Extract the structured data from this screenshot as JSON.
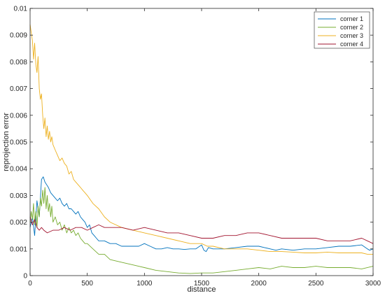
{
  "chart_data": {
    "type": "line",
    "title": "",
    "xlabel": "distance",
    "ylabel": "reprojection error",
    "xlim": [
      0,
      3000
    ],
    "ylim": [
      0,
      0.01
    ],
    "xticks": [
      0,
      500,
      1000,
      1500,
      2000,
      2500,
      3000
    ],
    "xtick_labels": [
      "0",
      "500",
      "1000",
      "1500",
      "2000",
      "2500",
      "3000"
    ],
    "yticks": [
      0,
      0.001,
      0.002,
      0.003,
      0.004,
      0.005,
      0.006,
      0.007,
      0.008,
      0.009,
      0.01
    ],
    "ytick_labels": [
      "0",
      "0.001",
      "0.002",
      "0.003",
      "0.004",
      "0.005",
      "0.006",
      "0.007",
      "0.008",
      "0.009",
      "0.01"
    ],
    "grid": false,
    "legend_position": "top-right",
    "series": [
      {
        "name": "corner 1",
        "color": "#0072BD",
        "x": [
          0,
          20,
          40,
          60,
          80,
          100,
          115,
          130,
          145,
          160,
          180,
          200,
          220,
          240,
          260,
          280,
          300,
          320,
          340,
          360,
          380,
          400,
          420,
          440,
          460,
          480,
          500,
          520,
          540,
          560,
          580,
          600,
          650,
          700,
          750,
          800,
          850,
          900,
          950,
          1000,
          1050,
          1100,
          1150,
          1200,
          1250,
          1300,
          1350,
          1400,
          1450,
          1500,
          1520,
          1540,
          1560,
          1600,
          1700,
          1800,
          1900,
          2000,
          2050,
          2100,
          2150,
          2200,
          2300,
          2400,
          2500,
          2600,
          2700,
          2800,
          2900,
          2950,
          2970,
          3000
        ],
        "y": [
          0.0018,
          0.0022,
          0.0015,
          0.0028,
          0.0022,
          0.0036,
          0.0037,
          0.0035,
          0.0034,
          0.0033,
          0.0031,
          0.003,
          0.0029,
          0.0028,
          0.0029,
          0.0027,
          0.0026,
          0.0027,
          0.0025,
          0.0025,
          0.0024,
          0.0023,
          0.0024,
          0.0022,
          0.0021,
          0.002,
          0.0018,
          0.0019,
          0.0016,
          0.0015,
          0.0014,
          0.0013,
          0.0013,
          0.0012,
          0.0012,
          0.0011,
          0.0011,
          0.0011,
          0.0011,
          0.0012,
          0.0011,
          0.001,
          0.001,
          0.00105,
          0.001,
          0.001,
          0.00098,
          0.001,
          0.001,
          0.00115,
          0.00095,
          0.0009,
          0.00105,
          0.001,
          0.001,
          0.00105,
          0.0011,
          0.0011,
          0.00105,
          0.001,
          0.00095,
          0.001,
          0.00095,
          0.001,
          0.001,
          0.00105,
          0.0011,
          0.0011,
          0.00115,
          0.001,
          0.00095,
          0.001
        ]
      },
      {
        "name": "corner 2",
        "color": "#77AC30",
        "x": [
          0,
          10,
          20,
          30,
          40,
          50,
          60,
          70,
          80,
          90,
          100,
          110,
          120,
          130,
          140,
          150,
          160,
          170,
          180,
          190,
          200,
          220,
          240,
          260,
          280,
          300,
          320,
          340,
          360,
          380,
          400,
          420,
          440,
          460,
          480,
          500,
          550,
          600,
          650,
          700,
          800,
          900,
          1000,
          1100,
          1200,
          1300,
          1400,
          1500,
          1550,
          1600,
          1700,
          1800,
          1900,
          2000,
          2100,
          2200,
          2300,
          2400,
          2500,
          2600,
          2700,
          2800,
          2900,
          3000
        ],
        "y": [
          0.002,
          0.0024,
          0.0021,
          0.0027,
          0.0019,
          0.0024,
          0.0018,
          0.0026,
          0.0022,
          0.0029,
          0.0026,
          0.0032,
          0.0027,
          0.0033,
          0.0025,
          0.003,
          0.0024,
          0.0027,
          0.0022,
          0.0026,
          0.002,
          0.0022,
          0.0019,
          0.002,
          0.0017,
          0.0019,
          0.0016,
          0.0018,
          0.0016,
          0.0017,
          0.0015,
          0.0016,
          0.0014,
          0.0013,
          0.0012,
          0.0012,
          0.001,
          0.0008,
          0.0008,
          0.0006,
          0.0005,
          0.0004,
          0.0003,
          0.0002,
          0.00015,
          0.0001,
          8e-05,
          0.0001,
          0.0001,
          0.0001,
          0.00015,
          0.0002,
          0.00025,
          0.0003,
          0.00025,
          0.00035,
          0.0003,
          0.0003,
          0.00035,
          0.0003,
          0.0003,
          0.0003,
          0.00025,
          0.00035
        ]
      },
      {
        "name": "corner 3",
        "color": "#EDB120",
        "x": [
          0,
          10,
          20,
          30,
          40,
          50,
          60,
          70,
          80,
          90,
          100,
          110,
          120,
          130,
          140,
          150,
          160,
          170,
          180,
          190,
          200,
          220,
          240,
          260,
          280,
          300,
          320,
          340,
          360,
          380,
          400,
          420,
          440,
          460,
          480,
          500,
          550,
          600,
          650,
          700,
          800,
          900,
          1000,
          1100,
          1200,
          1300,
          1400,
          1500,
          1550,
          1600,
          1700,
          1800,
          1900,
          2000,
          2100,
          2200,
          2300,
          2400,
          2500,
          2600,
          2700,
          2800,
          2900,
          2950,
          3000
        ],
        "y": [
          0.0094,
          0.0091,
          0.0088,
          0.0081,
          0.0087,
          0.0079,
          0.0076,
          0.0082,
          0.007,
          0.0066,
          0.0068,
          0.006,
          0.0055,
          0.0059,
          0.0052,
          0.0056,
          0.0051,
          0.0054,
          0.005,
          0.0052,
          0.0049,
          0.0047,
          0.0045,
          0.0043,
          0.0044,
          0.0042,
          0.0041,
          0.0038,
          0.0039,
          0.0036,
          0.0035,
          0.0034,
          0.0033,
          0.0032,
          0.0031,
          0.003,
          0.0027,
          0.0025,
          0.0022,
          0.002,
          0.0018,
          0.0017,
          0.0016,
          0.0015,
          0.0014,
          0.0013,
          0.0012,
          0.0012,
          0.0011,
          0.0011,
          0.001,
          0.001,
          0.001,
          0.00095,
          0.0009,
          0.0009,
          0.00088,
          0.00085,
          0.00085,
          0.00088,
          0.00085,
          0.00085,
          0.00085,
          0.0008,
          0.0008
        ]
      },
      {
        "name": "corner 4",
        "color": "#A2142F",
        "x": [
          0,
          20,
          40,
          60,
          80,
          100,
          120,
          150,
          200,
          250,
          300,
          350,
          400,
          450,
          500,
          550,
          600,
          650,
          700,
          800,
          900,
          1000,
          1100,
          1200,
          1300,
          1400,
          1500,
          1600,
          1700,
          1800,
          1900,
          2000,
          2100,
          2200,
          2300,
          2400,
          2500,
          2600,
          2700,
          2800,
          2900,
          2950,
          3000
        ],
        "y": [
          0.0022,
          0.0019,
          0.0021,
          0.0018,
          0.0017,
          0.0018,
          0.0017,
          0.0016,
          0.0017,
          0.0017,
          0.0018,
          0.0017,
          0.0018,
          0.0018,
          0.0017,
          0.0018,
          0.0019,
          0.0018,
          0.0018,
          0.0018,
          0.0017,
          0.0018,
          0.0017,
          0.0016,
          0.0016,
          0.0015,
          0.0014,
          0.0014,
          0.0015,
          0.0015,
          0.0016,
          0.0016,
          0.0015,
          0.0014,
          0.0014,
          0.0014,
          0.0014,
          0.0013,
          0.0013,
          0.0013,
          0.0014,
          0.0013,
          0.0012
        ]
      }
    ]
  }
}
